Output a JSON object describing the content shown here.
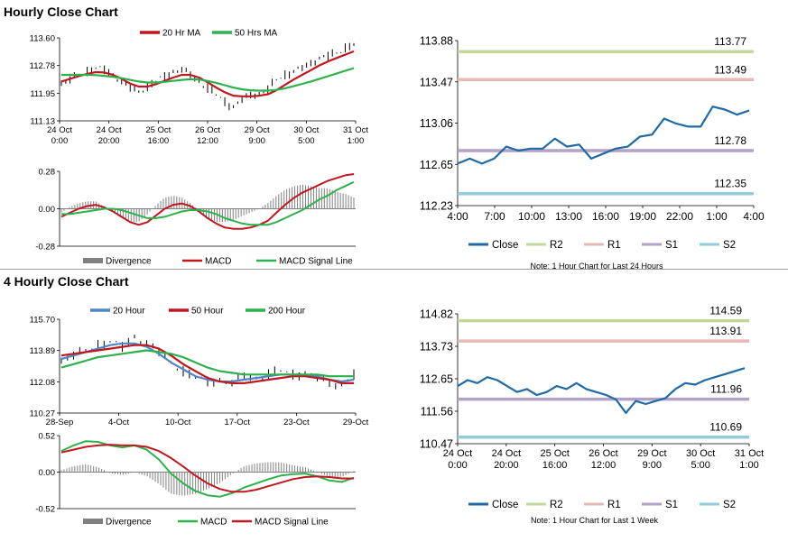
{
  "sections": {
    "hourly_title": "Hourly Close Chart",
    "four_hourly_title": "4 Hourly Close Chart"
  },
  "colors": {
    "price_black": "#000000",
    "ma_red": "#c0181e",
    "ma_green": "#2db14b",
    "ma_blue": "#4f86c6",
    "close_blue": "#1f6aa5",
    "r2": "#c4d79b",
    "r1": "#e6b9b8",
    "s1": "#b3a2c7",
    "s2": "#93cddd",
    "divergence": "#808080"
  },
  "chart_data": [
    {
      "id": "hourly-price",
      "type": "line",
      "legend": [
        "20 Hr MA",
        "50 Hrs MA"
      ],
      "y_ticks": [
        "113.60",
        "112.78",
        "111.95",
        "111.13"
      ],
      "ylim": [
        111.13,
        113.6
      ],
      "x_ticks": [
        [
          "24 Oct",
          "0:00"
        ],
        [
          "24 Oct",
          "20:00"
        ],
        [
          "25 Oct",
          "16:00"
        ],
        [
          "26 Oct",
          "12:00"
        ],
        [
          "29 Oct",
          "9:00"
        ],
        [
          "30 Oct",
          "5:00"
        ],
        [
          "31 Oct",
          "1:00"
        ]
      ],
      "series": [
        {
          "name": "Price",
          "values": [
            112.25,
            112.35,
            112.5,
            112.6,
            112.7,
            112.65,
            112.5,
            112.3,
            112.1,
            112.0,
            112.15,
            112.3,
            112.45,
            112.6,
            112.65,
            112.5,
            112.3,
            112.1,
            111.9,
            111.7,
            111.55,
            111.75,
            111.9,
            111.95,
            112.05,
            112.35,
            112.5,
            112.6,
            112.7,
            112.85,
            113.0,
            113.05,
            113.15,
            113.3,
            113.4
          ]
        },
        {
          "name": "20 Hr MA",
          "values": [
            112.3,
            112.38,
            112.46,
            112.53,
            112.58,
            112.57,
            112.5,
            112.38,
            112.24,
            112.15,
            112.15,
            112.22,
            112.32,
            112.42,
            112.5,
            112.5,
            112.42,
            112.28,
            112.12,
            111.98,
            111.88,
            111.86,
            111.86,
            111.88,
            111.92,
            112.04,
            112.2,
            112.36,
            112.5,
            112.64,
            112.78,
            112.9,
            113.0,
            113.1,
            113.2
          ]
        },
        {
          "name": "50 Hrs MA",
          "values": [
            112.5,
            112.5,
            112.5,
            112.5,
            112.49,
            112.47,
            112.44,
            112.4,
            112.35,
            112.3,
            112.27,
            112.27,
            112.29,
            112.32,
            112.35,
            112.37,
            112.36,
            112.32,
            112.26,
            112.19,
            112.12,
            112.07,
            112.04,
            112.03,
            112.03,
            112.05,
            112.1,
            112.16,
            112.23,
            112.3,
            112.38,
            112.46,
            112.54,
            112.62,
            112.7
          ]
        }
      ]
    },
    {
      "id": "hourly-macd",
      "type": "line",
      "legend": [
        "Divergence",
        "MACD",
        "MACD Signal Line"
      ],
      "y_ticks": [
        "0.28",
        "0.00",
        "-0.28"
      ],
      "ylim": [
        -0.28,
        0.28
      ],
      "series": [
        {
          "name": "MACD",
          "values": [
            -0.06,
            -0.03,
            0.0,
            0.02,
            0.03,
            0.01,
            -0.02,
            -0.06,
            -0.1,
            -0.12,
            -0.1,
            -0.05,
            0.0,
            0.03,
            0.04,
            0.02,
            -0.02,
            -0.07,
            -0.11,
            -0.14,
            -0.15,
            -0.15,
            -0.14,
            -0.12,
            -0.09,
            -0.03,
            0.03,
            0.08,
            0.12,
            0.15,
            0.18,
            0.21,
            0.23,
            0.25,
            0.26
          ]
        },
        {
          "name": "MACD Signal Line",
          "values": [
            -0.04,
            -0.04,
            -0.03,
            -0.02,
            -0.01,
            0.0,
            0.0,
            -0.01,
            -0.03,
            -0.05,
            -0.07,
            -0.07,
            -0.06,
            -0.04,
            -0.02,
            -0.01,
            -0.01,
            -0.02,
            -0.04,
            -0.07,
            -0.09,
            -0.11,
            -0.12,
            -0.12,
            -0.12,
            -0.1,
            -0.07,
            -0.04,
            -0.01,
            0.03,
            0.07,
            0.1,
            0.14,
            0.17,
            0.2
          ]
        }
      ]
    },
    {
      "id": "hourly-close",
      "type": "line",
      "y_ticks": [
        "113.88",
        "113.47",
        "113.06",
        "112.65",
        "112.23"
      ],
      "ylim": [
        112.23,
        113.88
      ],
      "x_ticks": [
        "4:00",
        "7:00",
        "10:00",
        "13:00",
        "16:00",
        "19:00",
        "22:00",
        "1:00",
        "4:00"
      ],
      "levels": [
        {
          "name": "R2",
          "value": 113.77,
          "label": "113.77"
        },
        {
          "name": "R1",
          "value": 113.49,
          "label": "113.49"
        },
        {
          "name": "S1",
          "value": 112.78,
          "label": "112.78"
        },
        {
          "name": "S2",
          "value": 112.35,
          "label": "112.35"
        }
      ],
      "series": [
        {
          "name": "Close",
          "values": [
            112.65,
            112.7,
            112.65,
            112.7,
            112.82,
            112.78,
            112.8,
            112.8,
            112.9,
            112.82,
            112.84,
            112.7,
            112.75,
            112.8,
            112.82,
            112.92,
            112.94,
            113.1,
            113.05,
            113.02,
            113.02,
            113.22,
            113.19,
            113.14,
            113.18
          ]
        }
      ],
      "legend": [
        "Close",
        "R2",
        "R1",
        "S1",
        "S2"
      ],
      "note": "Note: 1 Hour Chart for Last 24 Hours"
    },
    {
      "id": "four-hourly-price",
      "type": "line",
      "legend": [
        "20 Hour",
        "50 Hour",
        "200 Hour"
      ],
      "y_ticks": [
        "115.70",
        "113.89",
        "112.08",
        "110.27"
      ],
      "ylim": [
        110.27,
        115.7
      ],
      "x_ticks": [
        "28-Sep",
        "4-Oct",
        "10-Oct",
        "17-Oct",
        "23-Oct",
        "29-Oct"
      ],
      "series": [
        {
          "name": "Price",
          "values": [
            113.3,
            113.6,
            113.9,
            114.2,
            114.4,
            114.1,
            114.7,
            114.3,
            113.8,
            113.2,
            112.7,
            112.3,
            112.1,
            112.2,
            112.0,
            112.4,
            112.3,
            112.5,
            112.7,
            112.5,
            112.6,
            112.3,
            112.0,
            111.9,
            112.5
          ]
        },
        {
          "name": "20 Hour",
          "values": [
            113.4,
            113.6,
            113.8,
            114.0,
            114.2,
            114.3,
            114.3,
            114.1,
            113.7,
            113.2,
            112.8,
            112.4,
            112.2,
            112.1,
            112.1,
            112.2,
            112.3,
            112.4,
            112.5,
            112.5,
            112.5,
            112.4,
            112.2,
            112.1,
            112.2
          ]
        },
        {
          "name": "50 Hour",
          "values": [
            113.6,
            113.7,
            113.8,
            113.9,
            114.0,
            114.1,
            114.2,
            114.2,
            114.0,
            113.6,
            113.1,
            112.7,
            112.3,
            112.1,
            112.0,
            112.0,
            112.1,
            112.2,
            112.3,
            112.4,
            112.4,
            112.3,
            112.2,
            112.0,
            112.0
          ]
        },
        {
          "name": "200 Hour",
          "values": [
            112.9,
            113.1,
            113.3,
            113.5,
            113.6,
            113.7,
            113.8,
            113.9,
            113.8,
            113.7,
            113.5,
            113.2,
            112.9,
            112.7,
            112.6,
            112.5,
            112.5,
            112.5,
            112.5,
            112.5,
            112.5,
            112.5,
            112.4,
            112.4,
            112.4
          ]
        }
      ]
    },
    {
      "id": "four-hourly-macd",
      "type": "line",
      "legend": [
        "Divergence",
        "MACD",
        "MACD Signal Line"
      ],
      "y_ticks": [
        "0.52",
        "0.00",
        "-0.52"
      ],
      "ylim": [
        -0.52,
        0.52
      ],
      "series": [
        {
          "name": "MACD",
          "values": [
            0.3,
            0.38,
            0.44,
            0.43,
            0.38,
            0.35,
            0.38,
            0.32,
            0.18,
            -0.02,
            -0.16,
            -0.27,
            -0.33,
            -0.35,
            -0.3,
            -0.22,
            -0.16,
            -0.1,
            -0.05,
            -0.03,
            -0.02,
            -0.06,
            -0.12,
            -0.14,
            -0.08
          ]
        },
        {
          "name": "MACD Signal Line",
          "values": [
            0.28,
            0.32,
            0.36,
            0.38,
            0.39,
            0.38,
            0.38,
            0.36,
            0.3,
            0.2,
            0.08,
            -0.05,
            -0.16,
            -0.24,
            -0.28,
            -0.28,
            -0.25,
            -0.2,
            -0.15,
            -0.1,
            -0.07,
            -0.06,
            -0.07,
            -0.09,
            -0.09
          ]
        }
      ]
    },
    {
      "id": "four-hourly-close",
      "type": "line",
      "y_ticks": [
        "114.82",
        "113.73",
        "112.65",
        "111.56",
        "110.47"
      ],
      "ylim": [
        110.47,
        114.82
      ],
      "x_ticks": [
        [
          "24 Oct",
          "0:00"
        ],
        [
          "24 Oct",
          "20:00"
        ],
        [
          "25 Oct",
          "16:00"
        ],
        [
          "26 Oct",
          "12:00"
        ],
        [
          "29 Oct",
          "9:00"
        ],
        [
          "30 Oct",
          "5:00"
        ],
        [
          "31 Oct",
          "1:00"
        ]
      ],
      "levels": [
        {
          "name": "R2",
          "value": 114.59,
          "label": "114.59"
        },
        {
          "name": "R1",
          "value": 113.91,
          "label": "113.91"
        },
        {
          "name": "S1",
          "value": 111.96,
          "label": "111.96"
        },
        {
          "name": "S2",
          "value": 110.69,
          "label": "110.69"
        }
      ],
      "series": [
        {
          "name": "Close",
          "values": [
            112.4,
            112.6,
            112.5,
            112.7,
            112.6,
            112.4,
            112.2,
            112.3,
            112.1,
            112.2,
            112.4,
            112.3,
            112.5,
            112.3,
            112.2,
            112.1,
            111.95,
            111.5,
            111.9,
            111.8,
            111.9,
            112.0,
            112.3,
            112.5,
            112.45,
            112.6,
            112.7,
            112.8,
            112.9,
            113.0
          ]
        }
      ],
      "legend": [
        "Close",
        "R2",
        "R1",
        "S1",
        "S2"
      ],
      "note": "Note: 1 Hour Chart for Last 1 Week"
    }
  ]
}
